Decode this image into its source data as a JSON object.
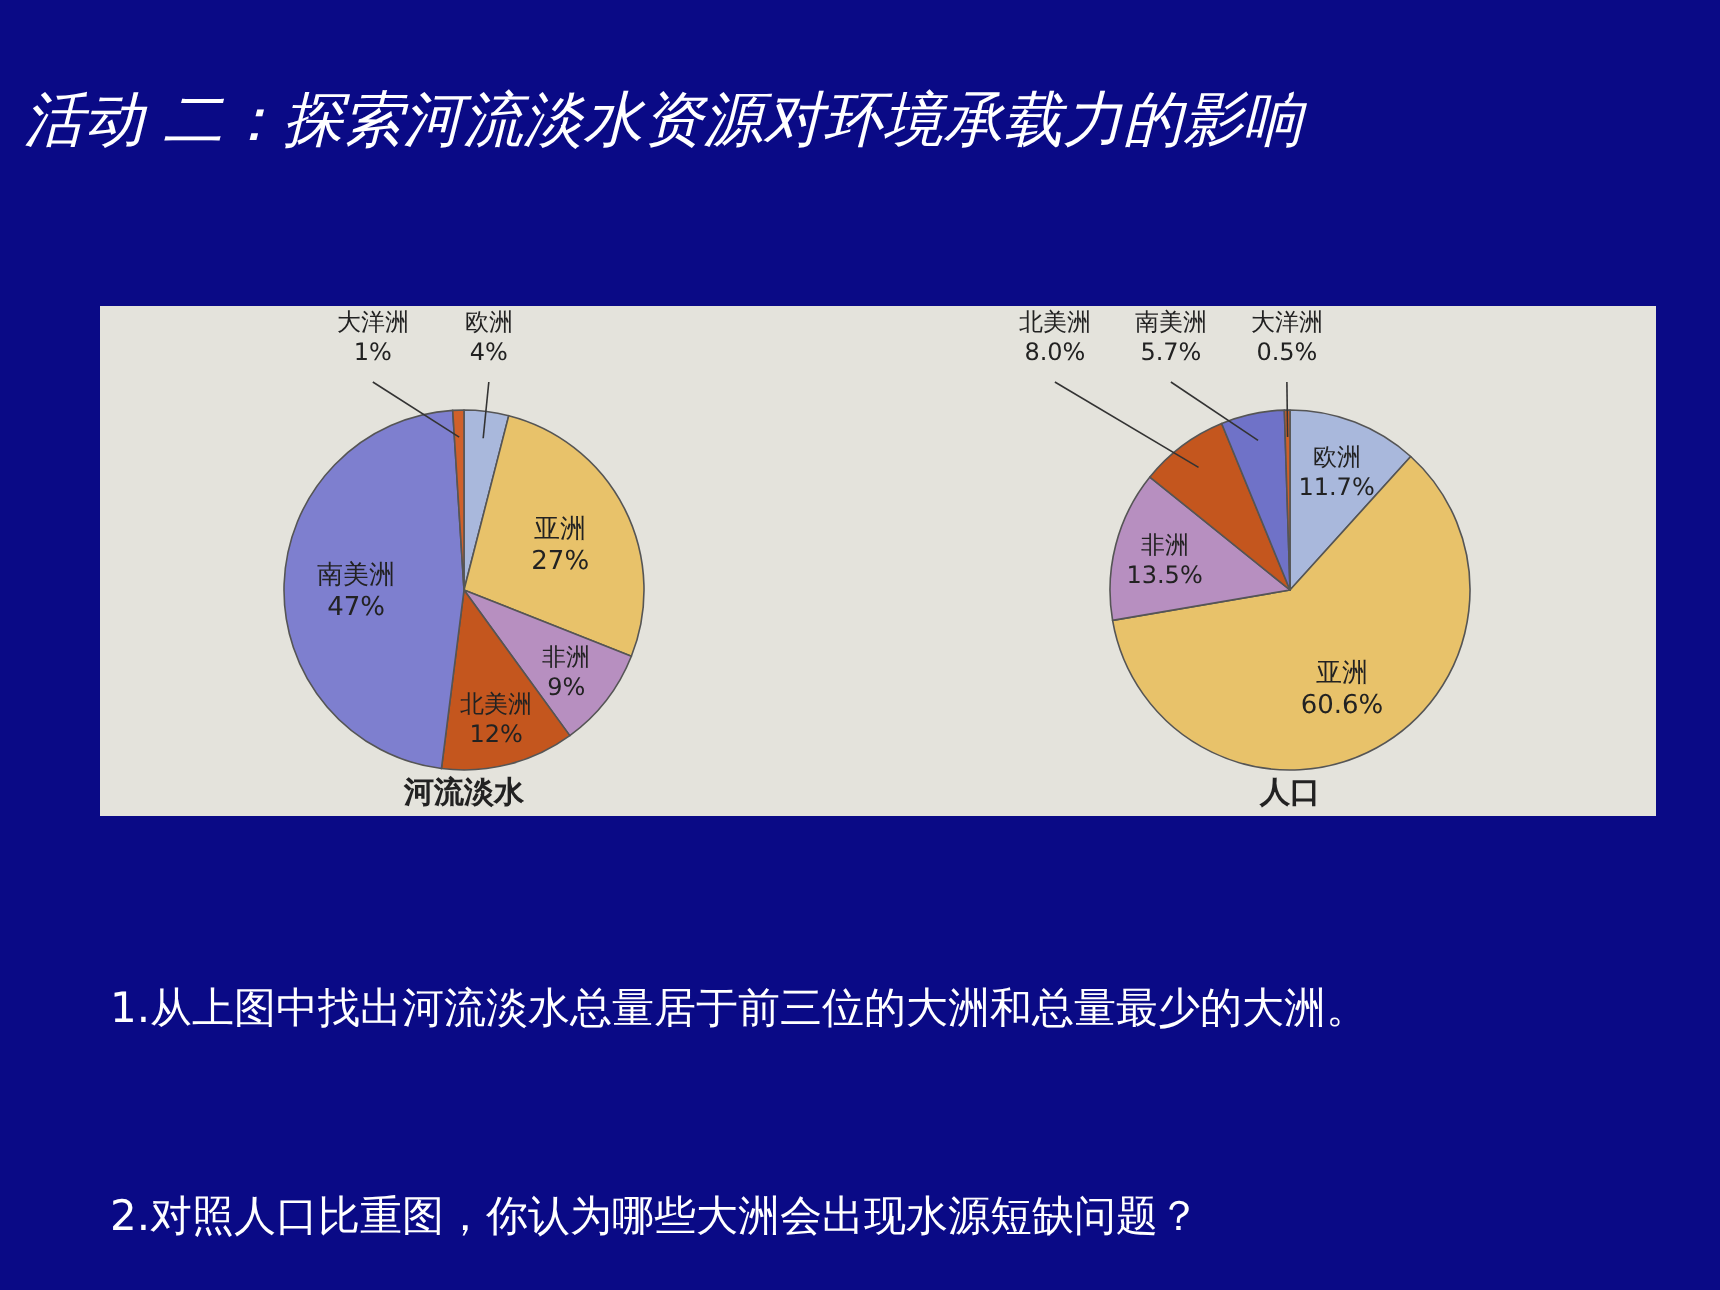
{
  "chart_data": [
    {
      "type": "pie",
      "title": "河流淡水",
      "categories": [
        "欧洲",
        "亚洲",
        "非洲",
        "北美洲",
        "南美洲",
        "大洋洲"
      ],
      "values": [
        4,
        27,
        9,
        12,
        47,
        1
      ],
      "value_labels": [
        "4%",
        "27%",
        "9%",
        "12%",
        "47%",
        "1%"
      ],
      "colors": [
        "#a9b8dc",
        "#e8c26a",
        "#b78fc0",
        "#c4561e",
        "#7e7fcf",
        "#d0602a"
      ]
    },
    {
      "type": "pie",
      "title": "人口",
      "categories": [
        "欧洲",
        "亚洲",
        "非洲",
        "北美洲",
        "南美洲",
        "大洋洲"
      ],
      "values": [
        11.7,
        60.6,
        13.5,
        8.0,
        5.7,
        0.5
      ],
      "value_labels": [
        "11.7%",
        "60.6%",
        "13.5%",
        "8.0%",
        "5.7%",
        "0.5%"
      ],
      "colors": [
        "#a9b8dc",
        "#e8c26a",
        "#b78fc0",
        "#c4561e",
        "#6f72c8",
        "#d0602a"
      ]
    },
    {
      "type": "other",
      "title": "活动 二：探索河流淡水资源对环境承载力的影响",
      "annotations": [
        "1.从上图中找出河流淡水总量居于前三位的大洲和总量最少的大洲。",
        "2.对照人口比重图，你认为哪些大洲会出现水源短缺问题？"
      ]
    }
  ]
}
